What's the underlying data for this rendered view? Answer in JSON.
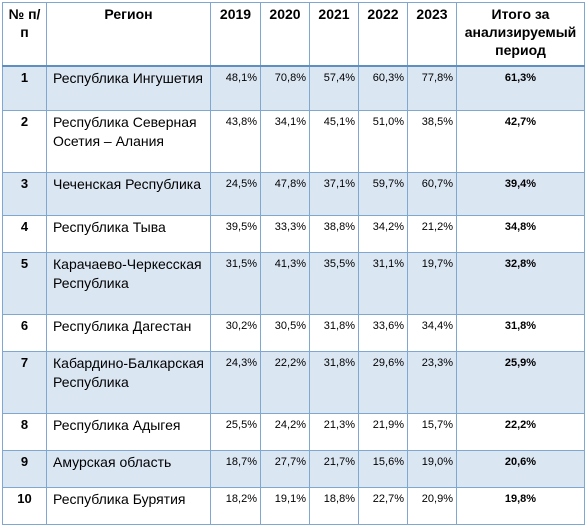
{
  "table": {
    "headers": {
      "num": "№ п/п",
      "region": "Регион",
      "y2019": "2019",
      "y2020": "2020",
      "y2021": "2021",
      "y2022": "2022",
      "y2023": "2023",
      "total": "Итого за анализируемый период"
    },
    "rows": [
      {
        "num": "1",
        "region": "Республика Ингушетия",
        "y2019": "48,1%",
        "y2020": "70,8%",
        "y2021": "57,4%",
        "y2022": "60,3%",
        "y2023": "77,8%",
        "total": "61,3%"
      },
      {
        "num": "2",
        "region": "Республика Северная Осетия – Алания",
        "y2019": "43,8%",
        "y2020": "34,1%",
        "y2021": "45,1%",
        "y2022": "51,0%",
        "y2023": "38,5%",
        "total": "42,7%"
      },
      {
        "num": "3",
        "region": "Чеченская Республика",
        "y2019": "24,5%",
        "y2020": "47,8%",
        "y2021": "37,1%",
        "y2022": "59,7%",
        "y2023": "60,7%",
        "total": "39,4%"
      },
      {
        "num": "4",
        "region": "Республика Тыва",
        "y2019": "39,5%",
        "y2020": "33,3%",
        "y2021": "38,8%",
        "y2022": "34,2%",
        "y2023": "21,2%",
        "total": "34,8%"
      },
      {
        "num": "5",
        "region": "Карачаево-Черкесская Республика",
        "y2019": "31,5%",
        "y2020": "41,3%",
        "y2021": "35,5%",
        "y2022": "31,1%",
        "y2023": "19,7%",
        "total": "32,8%"
      },
      {
        "num": "6",
        "region": "Республика Дагестан",
        "y2019": "30,2%",
        "y2020": "30,5%",
        "y2021": "31,8%",
        "y2022": "33,6%",
        "y2023": "34,4%",
        "total": "31,8%"
      },
      {
        "num": "7",
        "region": "Кабардино-Балкарская Республика",
        "y2019": "24,3%",
        "y2020": "22,2%",
        "y2021": "31,8%",
        "y2022": "29,6%",
        "y2023": "23,3%",
        "total": "25,9%"
      },
      {
        "num": "8",
        "region": "Республика Адыгея",
        "y2019": "25,5%",
        "y2020": "24,2%",
        "y2021": "21,3%",
        "y2022": "21,9%",
        "y2023": "15,7%",
        "total": "22,2%"
      },
      {
        "num": "9",
        "region": "Амурская область",
        "y2019": "18,7%",
        "y2020": "27,7%",
        "y2021": "21,7%",
        "y2022": "15,6%",
        "y2023": "19,0%",
        "total": "20,6%"
      },
      {
        "num": "10",
        "region": "Республика Бурятия",
        "y2019": "18,2%",
        "y2020": "19,1%",
        "y2021": "18,8%",
        "y2022": "22,7%",
        "y2023": "20,9%",
        "total": "19,8%"
      }
    ]
  },
  "colors": {
    "border": "#7fa7cf",
    "header_rule": "#5f8fc0",
    "shaded_row": "#dbe6f3"
  }
}
